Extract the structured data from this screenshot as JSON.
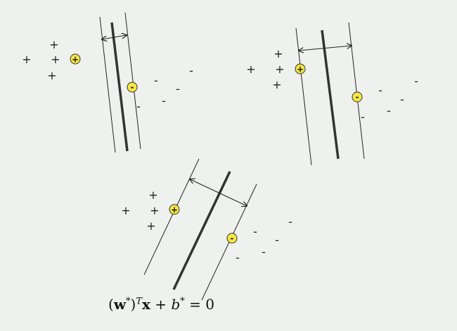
{
  "equation": {
    "lparen": "(",
    "w": "w",
    "star1": "*",
    "rparen": ")",
    "T": "T",
    "x": "x",
    "plus": " + ",
    "b": "b",
    "star2": "*",
    "eq": " = 0"
  },
  "labels": {
    "plus": "+",
    "minus": "-"
  },
  "colors": {
    "support_vector_fill": "#f5e642",
    "support_vector_stroke": "#333333",
    "line": "#222222",
    "background": "#eef1ee"
  },
  "panels": [
    {
      "name": "panel-top-left"
    },
    {
      "name": "panel-top-right"
    },
    {
      "name": "panel-bottom"
    }
  ]
}
